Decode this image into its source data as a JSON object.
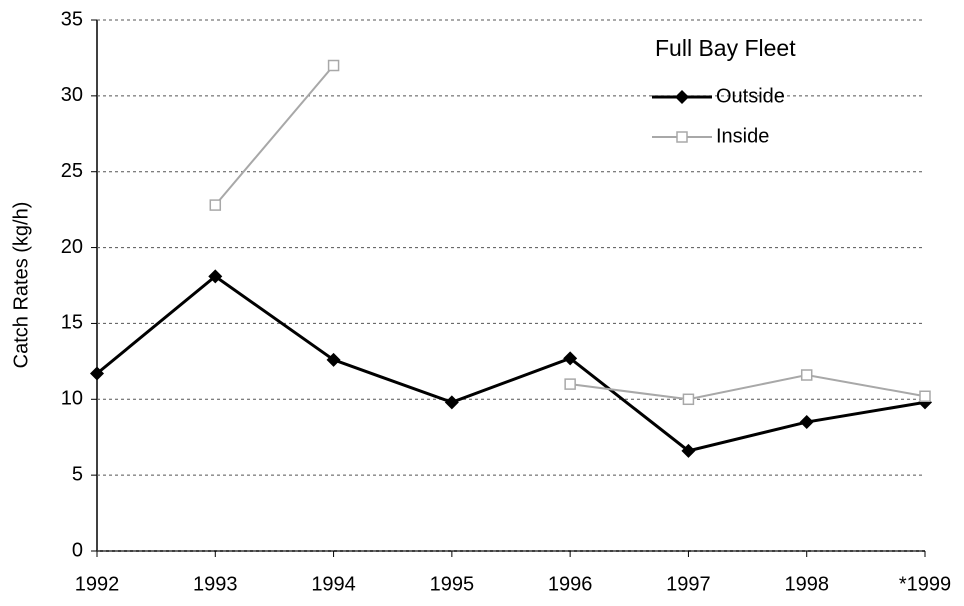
{
  "chart_data": {
    "type": "line",
    "title": "Full Bay Fleet",
    "y_label": "Catch Rates (kg/h)",
    "categories": [
      "1992",
      "1993",
      "1994",
      "1995",
      "1996",
      "1997",
      "1998",
      "*1999"
    ],
    "series": [
      {
        "name": "Outside",
        "color": "#000000",
        "values": [
          11.7,
          18.1,
          12.6,
          9.8,
          12.7,
          6.6,
          8.5,
          9.8
        ]
      },
      {
        "name": "Inside",
        "color": "#a8a8a8",
        "values": [
          null,
          22.8,
          32.0,
          null,
          11.0,
          10.0,
          11.6,
          10.2
        ]
      }
    ],
    "ylim": [
      0,
      35
    ],
    "yticks": [
      0,
      5,
      10,
      15,
      20,
      25,
      30,
      35
    ],
    "grid": true
  }
}
